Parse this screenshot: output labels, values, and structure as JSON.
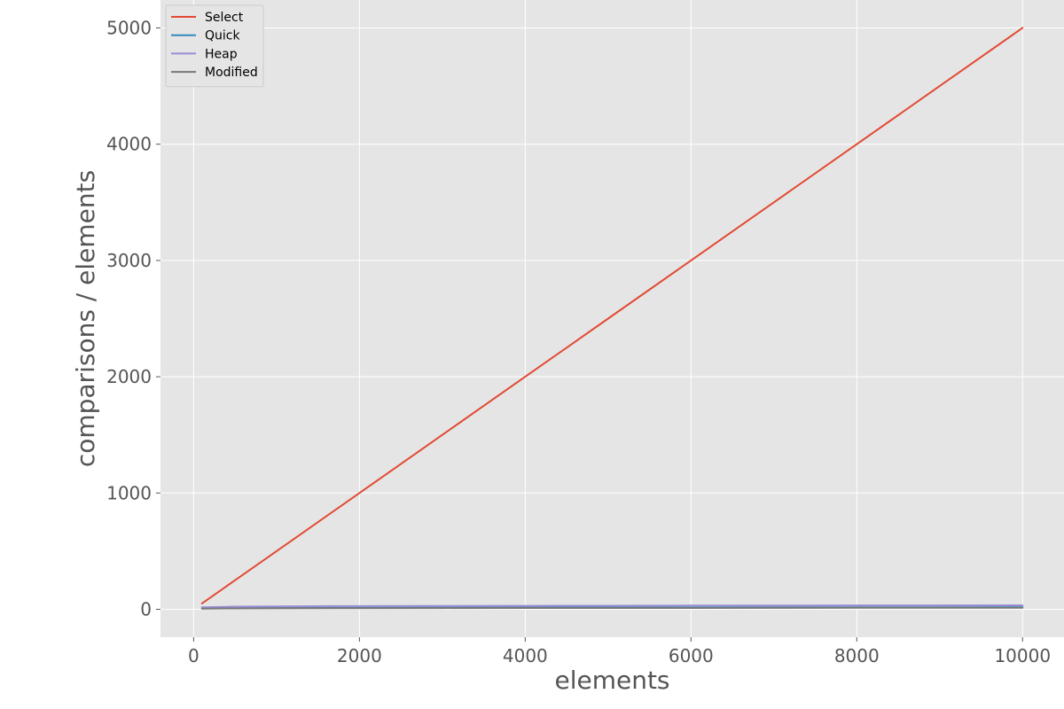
{
  "chart_data": {
    "type": "line",
    "title": "",
    "xlabel": "elements",
    "ylabel": "comparisons / elements",
    "xlim": [
      -400,
      10500
    ],
    "ylim": [
      -240,
      5240
    ],
    "xticks": [
      0,
      2000,
      4000,
      6000,
      8000,
      10000
    ],
    "yticks": [
      0,
      1000,
      2000,
      3000,
      4000,
      5000
    ],
    "grid": true,
    "legend_position": "top-left",
    "x": [
      100,
      500,
      1000,
      2000,
      3000,
      4000,
      5000,
      6000,
      7000,
      8000,
      9000,
      10000
    ],
    "series": [
      {
        "name": "Select",
        "color": "#e24a33",
        "values": [
          50,
          250,
          500,
          1000,
          1500,
          2000,
          2500,
          3000,
          3500,
          4000,
          4500,
          5000
        ]
      },
      {
        "name": "Quick",
        "color": "#348abd",
        "values": [
          8,
          11,
          12,
          14,
          15,
          15.5,
          16,
          16.5,
          17,
          17,
          17.5,
          18
        ]
      },
      {
        "name": "Heap",
        "color": "#988ed5",
        "values": [
          17,
          23,
          25,
          28,
          29,
          30,
          31,
          32,
          32.5,
          33,
          33.5,
          34
        ]
      },
      {
        "name": "Modified",
        "color": "#777777",
        "values": [
          6,
          8,
          9,
          10,
          11,
          11.5,
          12,
          12,
          12.5,
          13,
          13,
          13.5
        ]
      }
    ]
  }
}
